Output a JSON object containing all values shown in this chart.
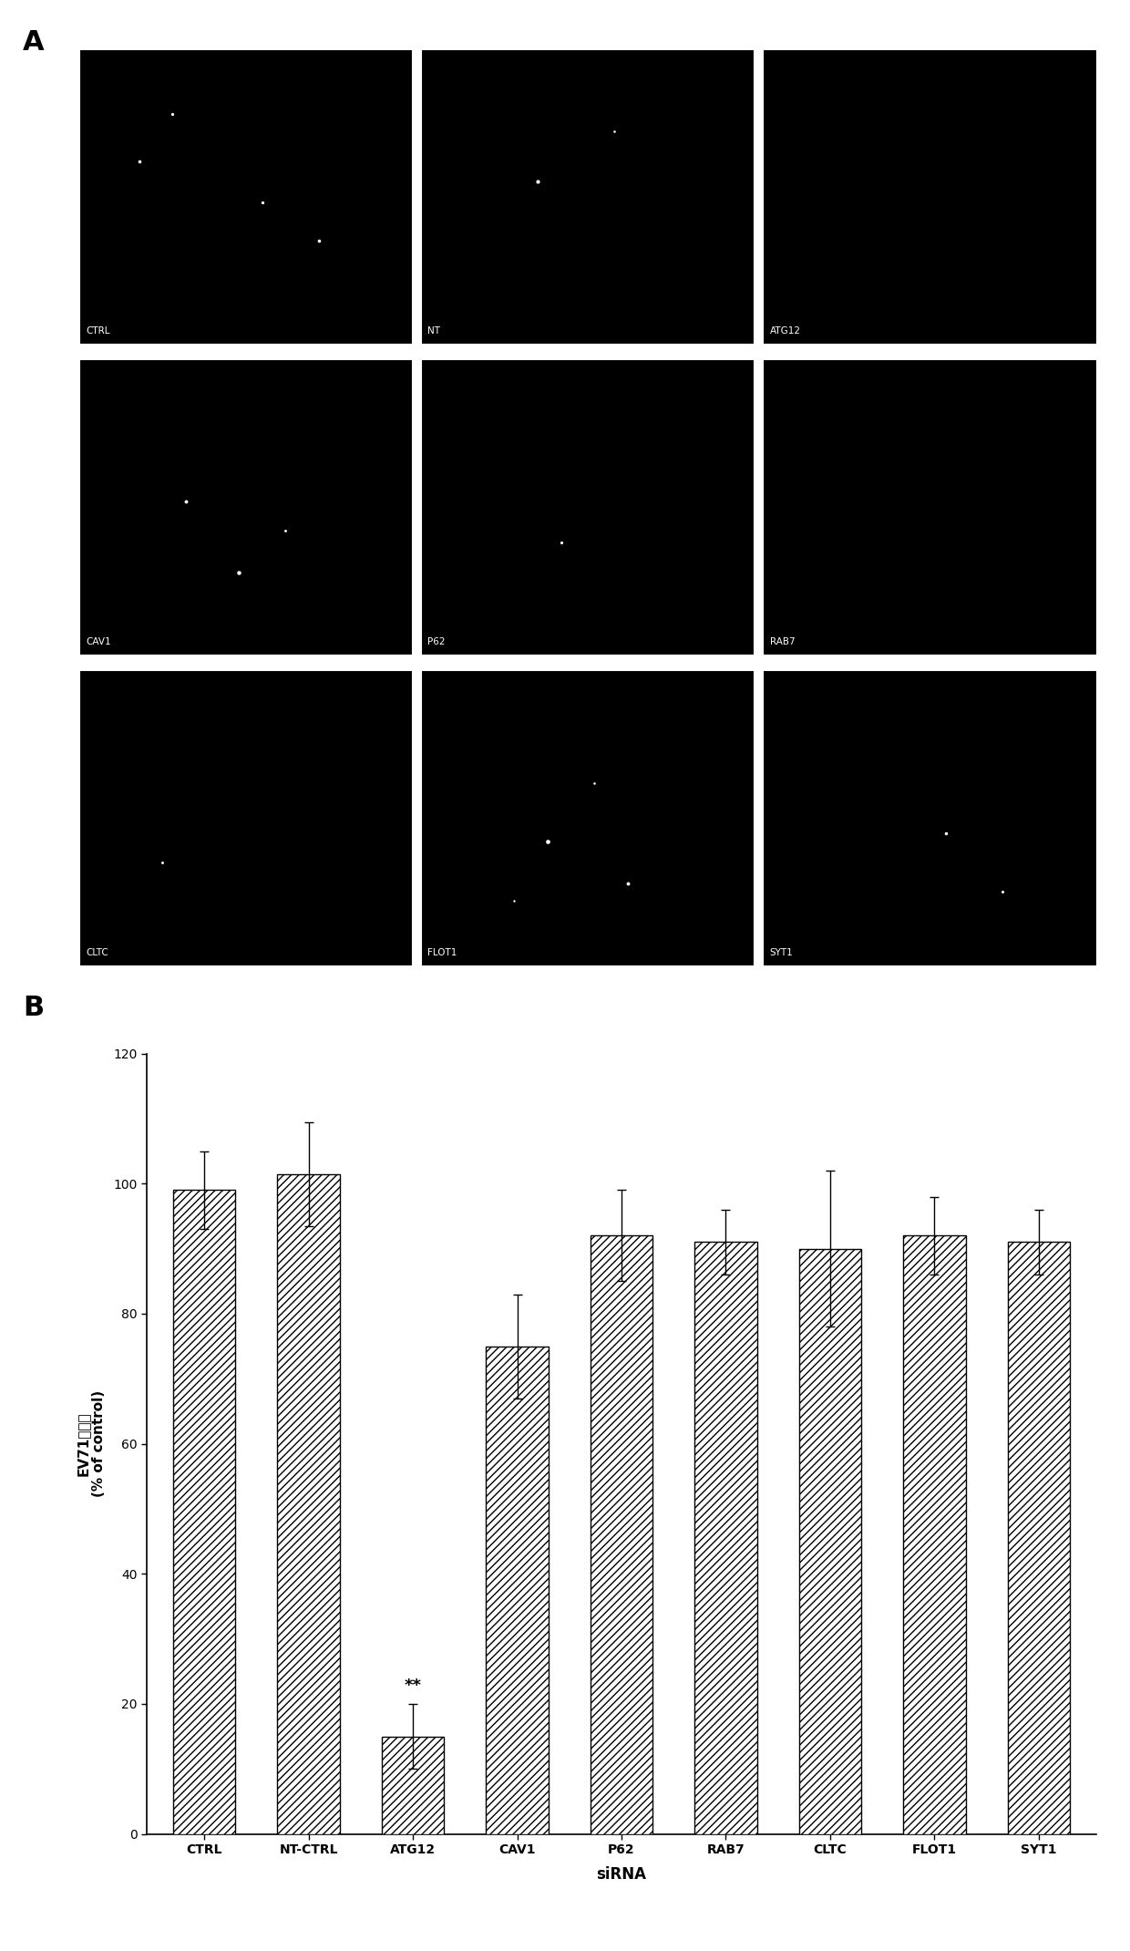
{
  "panel_a_labels": [
    [
      "CTRL",
      "NT",
      "ATG12"
    ],
    [
      "CAV1",
      "P62",
      "RAB7"
    ],
    [
      "CLTC",
      "FLOT1",
      "SYT1"
    ]
  ],
  "bar_categories": [
    "CTRL",
    "NT-CTRL",
    "ATG12",
    "CAV1",
    "P62",
    "RAB7",
    "CLTC",
    "FLOT1",
    "SYT1"
  ],
  "bar_values": [
    99,
    101.5,
    15,
    75,
    92,
    91,
    90,
    92,
    91
  ],
  "bar_errors": [
    6,
    8,
    5,
    8,
    7,
    5,
    12,
    6,
    5
  ],
  "ylabel_line1": "EV71感染性",
  "ylabel_line2": "(% of control)",
  "xlabel": "siRNA",
  "ylim": [
    0,
    120
  ],
  "yticks": [
    0,
    20,
    40,
    60,
    80,
    100,
    120
  ],
  "significance_idx": 2,
  "significance_text": "**",
  "panel_a_letter": "A",
  "panel_b_letter": "B",
  "hatch_pattern": "////",
  "bar_color": "white",
  "bar_edge_color": "black",
  "background_color": "white",
  "figure_bg": "white",
  "dot_positions": [
    [
      [
        0.18,
        0.62
      ],
      [
        0.28,
        0.78
      ],
      [
        0.55,
        0.48
      ],
      [
        0.72,
        0.35
      ]
    ],
    [
      [
        0.35,
        0.55
      ],
      [
        0.58,
        0.72
      ]
    ],
    [],
    [
      [
        0.32,
        0.52
      ],
      [
        0.62,
        0.42
      ],
      [
        0.48,
        0.28
      ]
    ],
    [
      [
        0.42,
        0.38
      ]
    ],
    [],
    [
      [
        0.25,
        0.35
      ]
    ],
    [
      [
        0.38,
        0.42
      ],
      [
        0.52,
        0.62
      ],
      [
        0.28,
        0.22
      ],
      [
        0.62,
        0.28
      ]
    ],
    [
      [
        0.55,
        0.45
      ],
      [
        0.72,
        0.25
      ]
    ]
  ]
}
